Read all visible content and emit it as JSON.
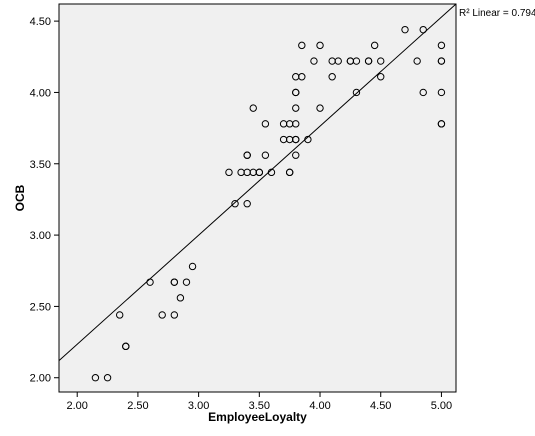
{
  "chart_data": {
    "type": "scatter",
    "xlabel": "EmployeeLoyalty",
    "ylabel": "OCB",
    "xlim": [
      1.85,
      5.12
    ],
    "ylim": [
      1.9,
      4.62
    ],
    "xticks": [
      "2.00",
      "2.50",
      "3.00",
      "3.50",
      "4.00",
      "4.50",
      "5.00"
    ],
    "yticks": [
      "2.00",
      "2.50",
      "3.00",
      "3.50",
      "4.00",
      "4.50"
    ],
    "grid": false,
    "background": "#f0f0f0",
    "fit_line": {
      "label": "R² Linear = 0.794",
      "from": [
        1.85,
        2.12
      ],
      "to": [
        5.12,
        4.62
      ]
    },
    "points": [
      [
        2.15,
        2.0
      ],
      [
        2.25,
        2.0
      ],
      [
        2.35,
        2.44
      ],
      [
        2.4,
        2.22
      ],
      [
        2.4,
        2.22
      ],
      [
        2.6,
        2.67
      ],
      [
        2.7,
        2.44
      ],
      [
        2.8,
        2.44
      ],
      [
        2.8,
        2.67
      ],
      [
        2.8,
        2.67
      ],
      [
        2.85,
        2.56
      ],
      [
        2.9,
        2.67
      ],
      [
        2.95,
        2.78
      ],
      [
        3.25,
        3.44
      ],
      [
        3.3,
        3.22
      ],
      [
        3.35,
        3.44
      ],
      [
        3.4,
        3.22
      ],
      [
        3.4,
        3.44
      ],
      [
        3.4,
        3.56
      ],
      [
        3.4,
        3.56
      ],
      [
        3.45,
        3.44
      ],
      [
        3.45,
        3.89
      ],
      [
        3.5,
        3.44
      ],
      [
        3.5,
        3.44
      ],
      [
        3.55,
        3.56
      ],
      [
        3.55,
        3.78
      ],
      [
        3.6,
        3.44
      ],
      [
        3.7,
        3.67
      ],
      [
        3.7,
        3.78
      ],
      [
        3.75,
        3.44
      ],
      [
        3.75,
        3.44
      ],
      [
        3.75,
        3.67
      ],
      [
        3.75,
        3.78
      ],
      [
        3.8,
        3.56
      ],
      [
        3.8,
        3.67
      ],
      [
        3.8,
        3.67
      ],
      [
        3.8,
        3.78
      ],
      [
        3.8,
        3.89
      ],
      [
        3.8,
        4.0
      ],
      [
        3.8,
        4.0
      ],
      [
        3.8,
        4.11
      ],
      [
        3.85,
        4.11
      ],
      [
        3.85,
        4.33
      ],
      [
        3.9,
        3.67
      ],
      [
        3.95,
        4.22
      ],
      [
        4.0,
        3.89
      ],
      [
        4.0,
        4.33
      ],
      [
        4.1,
        4.11
      ],
      [
        4.1,
        4.22
      ],
      [
        4.15,
        4.22
      ],
      [
        4.25,
        4.22
      ],
      [
        4.25,
        4.22
      ],
      [
        4.3,
        4.0
      ],
      [
        4.3,
        4.22
      ],
      [
        4.4,
        4.22
      ],
      [
        4.4,
        4.22
      ],
      [
        4.45,
        4.33
      ],
      [
        4.5,
        4.11
      ],
      [
        4.5,
        4.22
      ],
      [
        4.7,
        4.44
      ],
      [
        4.8,
        4.22
      ],
      [
        4.85,
        4.0
      ],
      [
        4.85,
        4.44
      ],
      [
        5.0,
        3.78
      ],
      [
        5.0,
        3.78
      ],
      [
        5.0,
        4.0
      ],
      [
        5.0,
        4.22
      ],
      [
        5.0,
        4.22
      ],
      [
        5.0,
        4.33
      ]
    ]
  }
}
